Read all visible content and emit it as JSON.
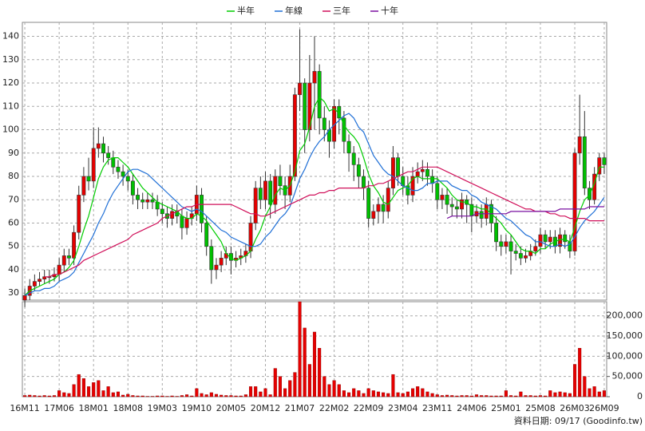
{
  "chart_data": [
    {
      "type": "candlestick",
      "categories": [
        "16M11",
        null,
        null,
        null,
        null,
        null,
        null,
        "17M06",
        null,
        null,
        null,
        null,
        null,
        null,
        "18M01",
        null,
        null,
        null,
        null,
        null,
        null,
        "18M08",
        null,
        null,
        null,
        null,
        null,
        null,
        "19M03",
        null,
        null,
        null,
        null,
        null,
        null,
        "19M10",
        null,
        null,
        null,
        null,
        null,
        null,
        "20M05",
        null,
        null,
        null,
        null,
        null,
        null,
        "20M12",
        null,
        null,
        null,
        null,
        null,
        null,
        "21M07",
        null,
        null,
        null,
        null,
        null,
        null,
        "22M02",
        null,
        null,
        null,
        null,
        null,
        null,
        "22M09",
        null,
        null,
        null,
        null,
        null,
        null,
        "23M04",
        null,
        null,
        null,
        null,
        null,
        null,
        "23M11",
        null,
        null,
        null,
        null,
        null,
        null,
        "24M06",
        null,
        null,
        null,
        null,
        null,
        null,
        "25M01",
        null,
        null,
        null,
        null,
        null,
        null,
        "25M08",
        null,
        null,
        null,
        null,
        null,
        null,
        "26M03",
        null,
        null,
        null,
        null,
        null,
        "26M09"
      ],
      "open": [
        27,
        29,
        33,
        35,
        36,
        37,
        37,
        38,
        42,
        46,
        45,
        56,
        72,
        80,
        78,
        92,
        94,
        90,
        88,
        84,
        82,
        80,
        78,
        72,
        70,
        69,
        70,
        69,
        66,
        64,
        62,
        65,
        63,
        58,
        62,
        64,
        72,
        60,
        50,
        40,
        42,
        45,
        47,
        44,
        45,
        46,
        48,
        60,
        75,
        70,
        78,
        68,
        80,
        76,
        72,
        80,
        115,
        120,
        100,
        120,
        125,
        105,
        100,
        95,
        110,
        105,
        95,
        90,
        85,
        80,
        75,
        62,
        65,
        68,
        65,
        75,
        88,
        80,
        76,
        72,
        80,
        82,
        83,
        80,
        77,
        70,
        72,
        68,
        67,
        66,
        70,
        68,
        63,
        65,
        62,
        68,
        60,
        52,
        50,
        52,
        48,
        47,
        45,
        46,
        48,
        50,
        55,
        52,
        54,
        50,
        55,
        52,
        48,
        90,
        97,
        75,
        70,
        81,
        88
      ],
      "high": [
        32,
        36,
        38,
        39,
        40,
        40,
        41,
        45,
        49,
        49,
        59,
        76,
        84,
        88,
        101,
        101,
        97,
        93,
        91,
        87,
        85,
        83,
        81,
        75,
        73,
        73,
        73,
        72,
        69,
        67,
        68,
        68,
        66,
        65,
        67,
        76,
        75,
        63,
        53,
        45,
        48,
        50,
        50,
        48,
        49,
        51,
        63,
        78,
        80,
        82,
        81,
        83,
        85,
        80,
        85,
        118,
        143,
        122,
        132,
        140,
        128,
        110,
        104,
        113,
        113,
        108,
        98,
        93,
        88,
        83,
        78,
        68,
        71,
        72,
        78,
        93,
        90,
        84,
        80,
        84,
        86,
        87,
        86,
        83,
        80,
        75,
        75,
        71,
        70,
        73,
        72,
        71,
        68,
        68,
        71,
        70,
        63,
        55,
        55,
        55,
        51,
        50,
        49,
        51,
        53,
        58,
        57,
        57,
        57,
        58,
        57,
        55,
        92,
        115,
        108,
        78,
        84,
        90,
        90
      ],
      "low": [
        24,
        27,
        31,
        33,
        34,
        34,
        35,
        35,
        39,
        42,
        42,
        53,
        69,
        74,
        75,
        88,
        86,
        85,
        81,
        79,
        76,
        74,
        68,
        66,
        66,
        66,
        66,
        63,
        60,
        58,
        59,
        60,
        53,
        55,
        59,
        61,
        56,
        46,
        34,
        36,
        39,
        42,
        38,
        41,
        42,
        43,
        45,
        57,
        66,
        66,
        62,
        64,
        72,
        66,
        69,
        78,
        108,
        90,
        95,
        100,
        98,
        95,
        88,
        92,
        98,
        90,
        82,
        78,
        75,
        70,
        58,
        59,
        60,
        60,
        62,
        72,
        76,
        72,
        68,
        69,
        77,
        78,
        76,
        73,
        66,
        66,
        64,
        63,
        62,
        62,
        60,
        56,
        60,
        58,
        59,
        56,
        48,
        46,
        47,
        38,
        44,
        42,
        43,
        44,
        46,
        47,
        49,
        49,
        47,
        47,
        49,
        45,
        46,
        85,
        72,
        66,
        68,
        78,
        81
      ],
      "close": [
        29,
        33,
        35,
        36,
        37,
        37,
        38,
        42,
        46,
        45,
        56,
        72,
        80,
        78,
        92,
        94,
        90,
        88,
        84,
        82,
        80,
        78,
        72,
        70,
        69,
        70,
        69,
        66,
        64,
        62,
        65,
        63,
        58,
        62,
        64,
        72,
        60,
        50,
        40,
        42,
        45,
        47,
        44,
        45,
        46,
        48,
        60,
        75,
        70,
        78,
        68,
        80,
        76,
        72,
        80,
        115,
        120,
        100,
        120,
        125,
        105,
        100,
        95,
        110,
        105,
        95,
        90,
        85,
        80,
        75,
        62,
        65,
        68,
        65,
        75,
        88,
        80,
        76,
        72,
        80,
        82,
        83,
        80,
        77,
        70,
        72,
        68,
        67,
        66,
        70,
        68,
        63,
        65,
        62,
        68,
        60,
        52,
        50,
        52,
        48,
        47,
        45,
        46,
        48,
        50,
        55,
        52,
        54,
        50,
        55,
        52,
        48,
        90,
        97,
        75,
        70,
        81,
        88,
        85
      ],
      "up_color": "#e60000",
      "down_color": "#00c000",
      "series": [
        {
          "name": "半年",
          "color": "#00cc00",
          "values": [
            29,
            31,
            32,
            33,
            34,
            35,
            36,
            38,
            39,
            41,
            44,
            50,
            57,
            63,
            71,
            79,
            84,
            87,
            88,
            88,
            86,
            84,
            81,
            78,
            75,
            73,
            71,
            69,
            68,
            67,
            66,
            65,
            63,
            62,
            62,
            64,
            63,
            61,
            58,
            55,
            52,
            47,
            45,
            44,
            45,
            46,
            48,
            53,
            57,
            63,
            67,
            72,
            75,
            74,
            76,
            82,
            91,
            94,
            101,
            110,
            114,
            112,
            108,
            109,
            107,
            102,
            99,
            97,
            94,
            88,
            81,
            76,
            73,
            69,
            68,
            71,
            74,
            75,
            76,
            79,
            80,
            79,
            79,
            79,
            79,
            77,
            75,
            72,
            70,
            69,
            69,
            67,
            67,
            66,
            66,
            64,
            62,
            60,
            57,
            55,
            52,
            49,
            48,
            48,
            47,
            49,
            49,
            51,
            52,
            53,
            53,
            52,
            58,
            65,
            70,
            72,
            77,
            84,
            84
          ]
        },
        {
          "name": "年線",
          "color": "#1f6fd6",
          "values": [
            29,
            30,
            31,
            31,
            32,
            32,
            33,
            35,
            36,
            37,
            39,
            43,
            47,
            51,
            55,
            60,
            64,
            69,
            73,
            76,
            79,
            82,
            83,
            83,
            82,
            81,
            79,
            77,
            75,
            73,
            71,
            69,
            67,
            66,
            65,
            66,
            65,
            63,
            61,
            59,
            57,
            56,
            54,
            53,
            52,
            51,
            50,
            50,
            51,
            54,
            56,
            59,
            62,
            64,
            67,
            73,
            79,
            83,
            88,
            92,
            95,
            97,
            100,
            102,
            104,
            106,
            107,
            105,
            101,
            99,
            94,
            89,
            86,
            83,
            81,
            80,
            78,
            76,
            75,
            74,
            74,
            75,
            77,
            77,
            78,
            78,
            78,
            76,
            75,
            74,
            74,
            72,
            71,
            69,
            68,
            67,
            66,
            64,
            62,
            61,
            59,
            57,
            55,
            54,
            52,
            52,
            51,
            50,
            50,
            51,
            50,
            51,
            54,
            58,
            61,
            63,
            65,
            68,
            71
          ]
        },
        {
          "name": "三年",
          "color": "#d0105a",
          "values": [
            null,
            null,
            null,
            null,
            37,
            37,
            38,
            38,
            39,
            40,
            41,
            42,
            44,
            45,
            46,
            47,
            48,
            49,
            50,
            51,
            52,
            53,
            55,
            56,
            57,
            58,
            59,
            60,
            62,
            63,
            64,
            65,
            66,
            67,
            67,
            68,
            68,
            68,
            68,
            68,
            68,
            68,
            68,
            67,
            66,
            65,
            64,
            64,
            63,
            63,
            64,
            65,
            66,
            67,
            68,
            69,
            70,
            71,
            72,
            72,
            73,
            73,
            74,
            74,
            75,
            75,
            75,
            75,
            75,
            75,
            76,
            76,
            77,
            77,
            78,
            79,
            80,
            81,
            82,
            82,
            83,
            84,
            84,
            84,
            84,
            83,
            82,
            81,
            80,
            79,
            78,
            77,
            76,
            75,
            74,
            73,
            72,
            71,
            70,
            69,
            68,
            67,
            66,
            66,
            65,
            65,
            65,
            64,
            64,
            63,
            63,
            62,
            62,
            62,
            62,
            61,
            61,
            61,
            61
          ]
        },
        {
          "name": "十年",
          "color": "#7a10a0",
          "values": [
            null,
            null,
            null,
            null,
            null,
            null,
            null,
            null,
            null,
            null,
            null,
            null,
            null,
            null,
            null,
            null,
            null,
            null,
            null,
            null,
            null,
            null,
            null,
            null,
            null,
            null,
            null,
            null,
            null,
            null,
            null,
            null,
            null,
            null,
            null,
            null,
            null,
            null,
            null,
            null,
            null,
            null,
            null,
            null,
            null,
            null,
            null,
            null,
            null,
            null,
            null,
            null,
            null,
            null,
            null,
            null,
            null,
            null,
            null,
            null,
            null,
            null,
            null,
            null,
            null,
            null,
            null,
            null,
            null,
            null,
            null,
            null,
            null,
            null,
            null,
            null,
            null,
            null,
            null,
            null,
            null,
            null,
            null,
            null,
            null,
            null,
            62,
            63,
            63,
            63,
            63,
            63,
            64,
            64,
            64,
            64,
            64,
            64,
            64,
            65,
            65,
            65,
            65,
            65,
            65,
            65,
            65,
            65,
            65,
            66,
            66,
            66,
            66,
            66,
            66,
            67,
            67,
            67,
            67
          ]
        }
      ],
      "ylim": [
        27,
        146
      ],
      "yticks": [
        30,
        40,
        50,
        60,
        70,
        80,
        90,
        100,
        110,
        120,
        130,
        140
      ],
      "grid": true,
      "legend": "top"
    },
    {
      "type": "bar",
      "values": [
        3000,
        4000,
        3000,
        2000,
        3000,
        2000,
        3000,
        15000,
        10000,
        8000,
        30000,
        55000,
        45000,
        25000,
        35000,
        40000,
        15000,
        25000,
        10000,
        12000,
        4000,
        6000,
        3000,
        2000,
        2000,
        1000,
        1000,
        2000,
        2000,
        1000,
        2000,
        1000,
        3000,
        5000,
        2000,
        20000,
        8000,
        5000,
        10000,
        6000,
        4000,
        3000,
        3000,
        2000,
        2000,
        5000,
        25000,
        25000,
        12000,
        20000,
        5000,
        70000,
        50000,
        20000,
        40000,
        60000,
        235000,
        170000,
        80000,
        160000,
        120000,
        50000,
        30000,
        40000,
        30000,
        15000,
        10000,
        20000,
        15000,
        8000,
        20000,
        15000,
        12000,
        10000,
        8000,
        55000,
        10000,
        8000,
        12000,
        20000,
        25000,
        20000,
        12000,
        8000,
        5000,
        3000,
        4000,
        3000,
        2000,
        3000,
        3000,
        2000,
        5000,
        3000,
        3000,
        2000,
        2000,
        2000,
        15000,
        3000,
        2000,
        12000,
        3000,
        3000,
        2000,
        3000,
        2000,
        15000,
        10000,
        12000,
        10000,
        8000,
        80000,
        120000,
        50000,
        20000,
        25000,
        12000,
        15000
      ],
      "color": "#e60000",
      "ylim": [
        0,
        235000
      ],
      "yticks": [
        0,
        {
          "value": 50000,
          "label": "50,000"
        },
        {
          "value": 100000,
          "label": "100,000"
        },
        {
          "value": 150000,
          "label": "150,000"
        },
        {
          "value": 200000,
          "label": "200,000"
        }
      ],
      "grid": true,
      "note": "資料日期: 09/17 (Goodinfo.tw)"
    }
  ]
}
